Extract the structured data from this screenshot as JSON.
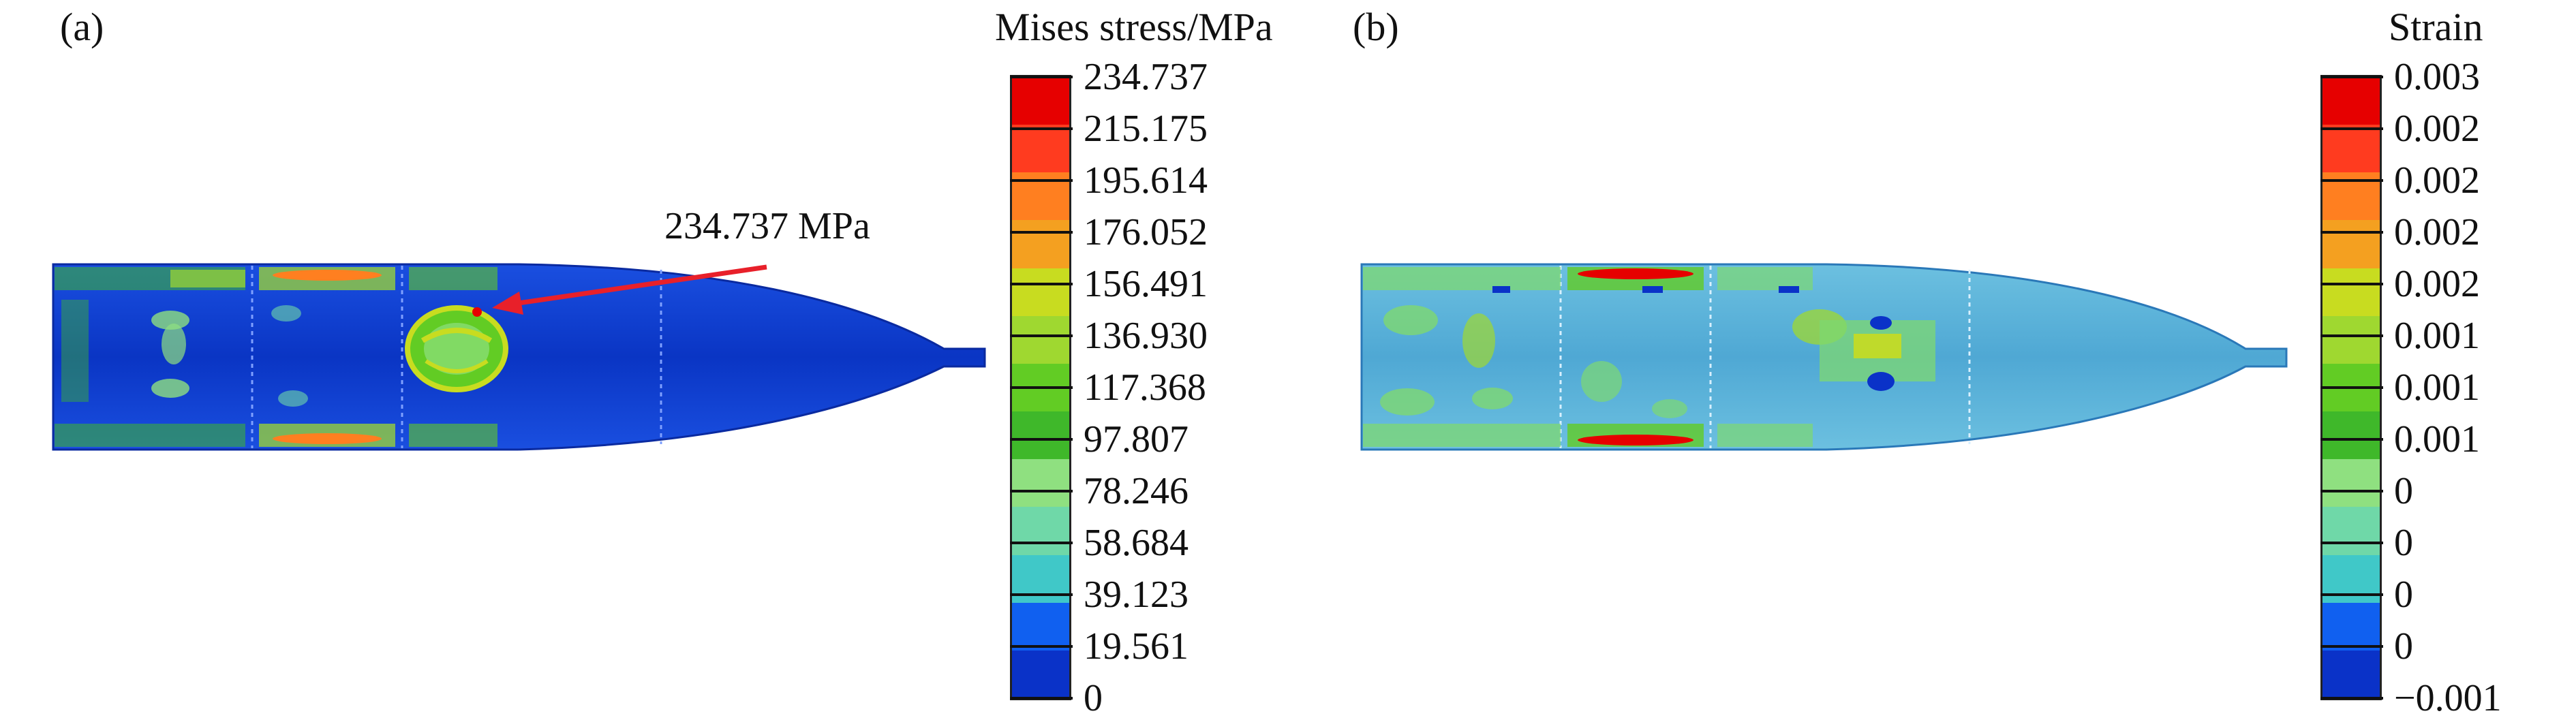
{
  "panel_a": {
    "label": "(a)",
    "legend_title": "Mises stress/MPa",
    "ticks": [
      "234.737",
      "215.175",
      "195.614",
      "176.052",
      "156.491",
      "136.930",
      "117.368",
      "97.807",
      "78.246",
      "58.684",
      "39.123",
      "19.561",
      "0"
    ],
    "annotation": "234.737 MPa"
  },
  "panel_b": {
    "label": "(b)",
    "legend_title": "Strain",
    "ticks": [
      "0.003",
      "0.002",
      "0.002",
      "0.002",
      "0.002",
      "0.001",
      "0.001",
      "0.001",
      "0",
      "0",
      "0",
      "0",
      "−0.001"
    ]
  },
  "colors": {
    "bands_top_to_bottom": [
      "#e60000",
      "#ff3b1f",
      "#ff7f20",
      "#f4a020",
      "#c8dc20",
      "#9fd830",
      "#62cc24",
      "#3fb82a",
      "#8fe080",
      "#6fd8a8",
      "#40c8c8",
      "#1060f0",
      "#0a32c8"
    ],
    "body_blue": "#0c3fd0",
    "body_cyan": "#4fb0d8",
    "mottle_green": "#7ed870",
    "arrow": "#e8202a"
  }
}
